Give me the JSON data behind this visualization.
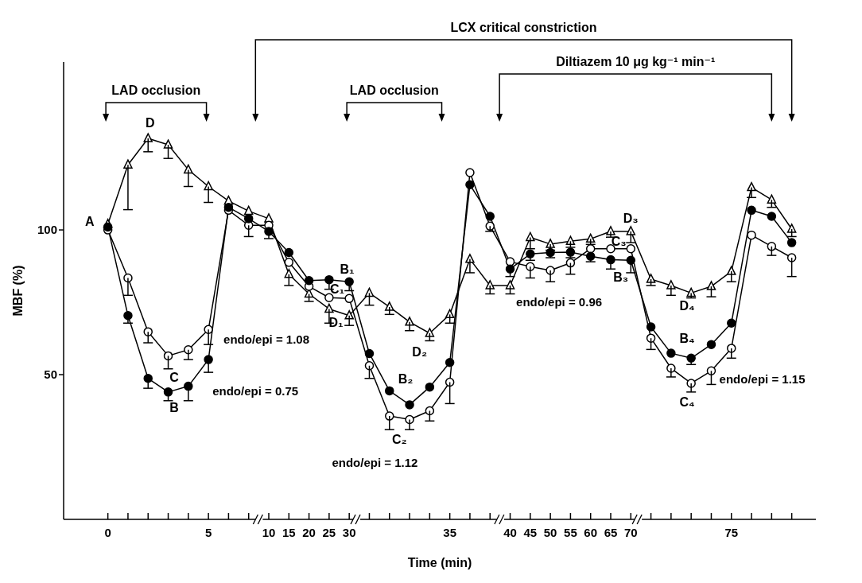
{
  "chart_data": {
    "type": "line",
    "xlabel": "Time (min)",
    "ylabel": "MBF (%)",
    "categories": [
      "0",
      null,
      null,
      null,
      null,
      "5",
      null,
      null,
      "10",
      "15",
      "20",
      "25",
      "30",
      null,
      null,
      null,
      null,
      "35",
      null,
      null,
      "40",
      "45",
      "50",
      "55",
      "60",
      "65",
      "70",
      null,
      null,
      null,
      null,
      "75",
      null,
      null,
      null
    ],
    "ylim": [
      0,
      158
    ],
    "yticks": [
      50,
      100
    ],
    "series": [
      {
        "color": "#000000",
        "marker": "circle",
        "values": [
          101,
          70.4,
          48.7,
          44,
          46,
          55.2,
          107.8,
          103.9,
          99.5,
          92.2,
          82.5,
          82.8,
          82.1,
          57.3,
          44.4,
          39.6,
          45.7,
          54.2,
          115.6,
          104.7,
          86.5,
          91.7,
          92.2,
          92.3,
          90.9,
          89.7,
          89.5,
          66.5,
          57.4,
          55.7,
          60.4,
          67.8,
          106.8,
          104.7,
          95.6
        ],
        "errors": [
          null,
          [
            67.8,
            70.4
          ],
          [
            45.3,
            48.7
          ],
          [
            41,
            44
          ],
          [
            41,
            46
          ],
          [
            50.8,
            55.2
          ],
          null,
          null,
          [
            97,
            99.5
          ],
          null,
          null,
          [
            79.5,
            82.8
          ],
          [
            79,
            82.1
          ],
          null,
          null,
          null,
          null,
          null,
          null,
          null,
          [
            83.9,
            86.5
          ],
          [
            89.5,
            91.7
          ],
          [
            90.4,
            92.2
          ],
          [
            90.4,
            92.3
          ],
          [
            89,
            90.9
          ],
          [
            86.5,
            89.7
          ],
          [
            85.2,
            89.5
          ],
          null,
          null,
          [
            53.5,
            55.7
          ],
          null,
          null,
          null,
          null,
          null
        ]
      },
      {
        "color": "#000000",
        "marker": "circle",
        "values": [
          100,
          83.4,
          64.8,
          56.5,
          58.6,
          65.6,
          106.8,
          101.6,
          101.6,
          88.8,
          80.5,
          76.6,
          76.3,
          53.1,
          35.7,
          34.5,
          37.5,
          47.4,
          119.8,
          101.3,
          89,
          87.3,
          86,
          88.6,
          93.5,
          93.5,
          93.5,
          62.6,
          52.2,
          47,
          51.3,
          59.1,
          98.2,
          94.3,
          90.4
        ],
        "errors": [
          null,
          [
            77.4,
            83.4
          ],
          [
            61,
            64.8
          ],
          [
            52,
            56.5
          ],
          [
            55.2,
            58.6
          ],
          [
            60.4,
            65.6
          ],
          null,
          [
            97.7,
            101.6
          ],
          null,
          null,
          null,
          null,
          null,
          [
            48.7,
            53.1
          ],
          [
            31,
            35.7
          ],
          [
            31,
            34.5
          ],
          [
            34,
            37.5
          ],
          [
            40,
            47.4
          ],
          null,
          [
            99.5,
            101.3
          ],
          null,
          [
            83.4,
            87.3
          ],
          [
            82.1,
            86
          ],
          [
            84.7,
            88.6
          ],
          null,
          null,
          null,
          [
            58.7,
            62.6
          ],
          [
            49.2,
            52.2
          ],
          [
            44,
            47
          ],
          [
            46.6,
            51.3
          ],
          [
            55.7,
            59.1
          ],
          null,
          [
            91.2,
            94.3
          ],
          [
            83.9,
            90.4
          ]
        ]
      },
      {
        "color": "#000000",
        "marker": "triangle",
        "values": [
          102,
          122.5,
          131.6,
          129.4,
          120.8,
          115,
          110,
          106.5,
          103.9,
          84.7,
          77.9,
          72.7,
          70.4,
          78.2,
          73.4,
          68.2,
          64.3,
          70.8,
          89.9,
          80.8,
          80.8,
          97.4,
          95.1,
          96.1,
          96.9,
          99.5,
          99.5,
          83,
          80.8,
          78.2,
          80.5,
          85.7,
          114.7,
          110.4,
          100.3
        ],
        "errors": [
          null,
          [
            107,
            122.5
          ],
          [
            127,
            131.6
          ],
          [
            124.7,
            129.4
          ],
          [
            115,
            120.8
          ],
          [
            109.5,
            115
          ],
          null,
          null,
          null,
          [
            80.8,
            84.7
          ],
          [
            75.3,
            77.9
          ],
          [
            67.8,
            72.7
          ],
          [
            67,
            70.4
          ],
          [
            74,
            78.2
          ],
          [
            70.8,
            73.4
          ],
          [
            65.2,
            68.2
          ],
          [
            61.7,
            64.3
          ],
          [
            67.8,
            70.8
          ],
          [
            85.2,
            89.9
          ],
          [
            77.9,
            80.8
          ],
          [
            77.9,
            80.8
          ],
          [
            93.5,
            97.4
          ],
          [
            93,
            95.1
          ],
          [
            94,
            96.1
          ],
          [
            95,
            96.9
          ],
          [
            97.5,
            99.5
          ],
          [
            95.6,
            99.5
          ],
          [
            80.8,
            83
          ],
          [
            77.4,
            80.8
          ],
          [
            76.5,
            78.2
          ],
          [
            76.9,
            80.5
          ],
          [
            82.1,
            85.7
          ],
          [
            111.2,
            114.7
          ],
          [
            107.8,
            110.4
          ],
          [
            97.7,
            100.3
          ]
        ]
      }
    ],
    "annotations": [
      "LAD occlusion",
      "LCX critical constriction",
      "LAD occlusion",
      "Diltiazem 10 μg kg⁻¹ min⁻¹",
      "A",
      "D",
      "C",
      "B",
      "endo/epi = 0.75",
      "B₁",
      "C₁",
      "D₁",
      "endo/epi = 1.08",
      "D₂",
      "B₂",
      "C₂",
      "endo/epi = 1.12",
      "D₃",
      "C₃",
      "B₃",
      "endo/epi = 0.96",
      "D₄",
      "B₄",
      "C₄",
      "endo/epi = 1.15"
    ]
  }
}
